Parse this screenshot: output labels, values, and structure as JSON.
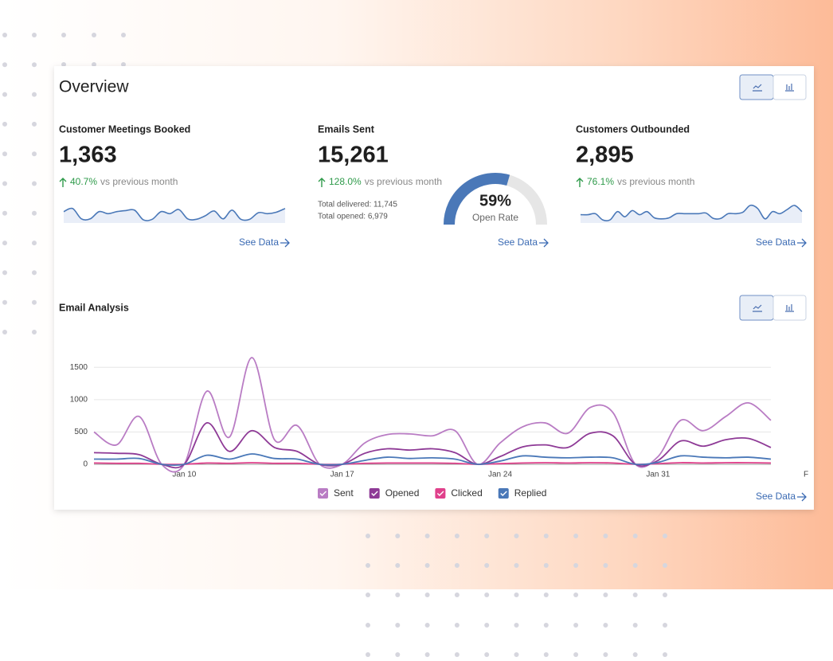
{
  "header": {
    "title": "Overview"
  },
  "cards": [
    {
      "title": "Customer Meetings Booked",
      "value": "1,363",
      "change": "40.7%",
      "change_text": "vs previous month",
      "link": "See Data",
      "sparkline": [
        55,
        70,
        20,
        20,
        55,
        45,
        55,
        60,
        62,
        15,
        18,
        55,
        45,
        65,
        20,
        18,
        35,
        58,
        20,
        62,
        18,
        18,
        50,
        45,
        52,
        70
      ]
    },
    {
      "title": "Emails Sent",
      "value": "15,261",
      "change": "128.0%",
      "change_text": "vs previous month",
      "link": "See Data",
      "details": [
        "Total delivered: 11,745",
        "Total opened: 6,979"
      ],
      "gauge": {
        "value": 59,
        "value_label": "59%",
        "label": "Open Rate"
      }
    },
    {
      "title": "Customers Outbounded",
      "value": "2,895",
      "change": "76.1%",
      "change_text": "vs previous month",
      "link": "See Data",
      "sparkline": [
        40,
        40,
        45,
        15,
        15,
        55,
        30,
        60,
        40,
        55,
        25,
        20,
        25,
        45,
        45,
        45,
        45,
        48,
        22,
        22,
        45,
        45,
        52,
        85,
        70,
        20,
        55,
        45,
        65,
        85,
        55
      ]
    }
  ],
  "chart_data": {
    "type": "line",
    "title": "Email Analysis",
    "link": "See Data",
    "categories": [
      null,
      null,
      null,
      null,
      "Jan 10",
      null,
      null,
      null,
      null,
      null,
      null,
      "Jan 17",
      null,
      null,
      null,
      null,
      null,
      null,
      "Jan 24",
      null,
      null,
      null,
      null,
      null,
      null,
      "Jan 31",
      null,
      null,
      null,
      null,
      null
    ],
    "clipped_label": "F",
    "ylim": [
      0,
      1700
    ],
    "yticks": [
      0,
      500,
      1000,
      1500
    ],
    "grid": true,
    "series": [
      {
        "name": "Sent",
        "color": "#b97cc4",
        "values": [
          500,
          300,
          740,
          0,
          0,
          1130,
          420,
          1650,
          380,
          600,
          0,
          0,
          330,
          460,
          470,
          440,
          520,
          0,
          330,
          580,
          640,
          480,
          880,
          800,
          0,
          120,
          680,
          520,
          740,
          950,
          680
        ]
      },
      {
        "name": "Opened",
        "color": "#8e3a96",
        "values": [
          180,
          170,
          150,
          0,
          0,
          640,
          200,
          520,
          260,
          200,
          0,
          0,
          170,
          240,
          220,
          240,
          180,
          0,
          120,
          270,
          300,
          260,
          480,
          440,
          0,
          60,
          360,
          280,
          380,
          400,
          260
        ]
      },
      {
        "name": "Clicked",
        "color": "#e0408b",
        "values": [
          20,
          15,
          15,
          0,
          0,
          20,
          15,
          25,
          15,
          15,
          0,
          0,
          15,
          20,
          20,
          20,
          15,
          0,
          10,
          20,
          25,
          20,
          25,
          20,
          0,
          10,
          25,
          20,
          25,
          25,
          20
        ]
      },
      {
        "name": "Replied",
        "color": "#4a78b8",
        "values": [
          80,
          80,
          90,
          0,
          0,
          140,
          80,
          160,
          90,
          80,
          0,
          0,
          60,
          110,
          90,
          100,
          80,
          0,
          50,
          130,
          110,
          100,
          110,
          100,
          0,
          30,
          130,
          110,
          100,
          110,
          80
        ]
      }
    ]
  }
}
